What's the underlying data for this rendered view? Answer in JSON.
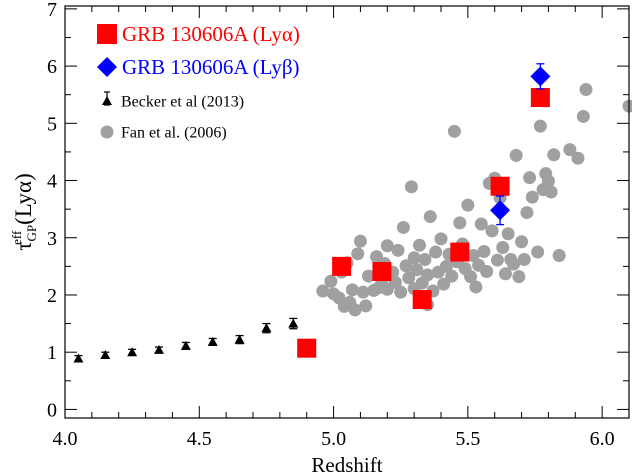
{
  "chart_data": {
    "type": "scatter",
    "xlabel": "Redshift",
    "ylabel": {
      "tau": "τ",
      "sub": "GP",
      "sup": "eff",
      "rest": " (Lyα)"
    },
    "xlim": [
      4.0,
      6.1
    ],
    "ylim": [
      -0.15,
      7.05
    ],
    "xticks": [
      4.0,
      4.5,
      5.0,
      5.5,
      6.0
    ],
    "xtick_labels": [
      "4.0",
      "4.5",
      "5.0",
      "5.5",
      "6.0"
    ],
    "yticks": [
      0,
      1,
      2,
      3,
      4,
      5,
      6,
      7
    ],
    "ytick_labels": [
      "0",
      "1",
      "2",
      "3",
      "4",
      "5",
      "6",
      "7"
    ],
    "grid": false,
    "legend_position": "top-left",
    "series": [
      {
        "name": "GRB 130606A (Lyα)",
        "marker": "square",
        "color": "#ff0000",
        "points": [
          [
            4.9,
            1.07
          ],
          [
            5.03,
            2.5
          ],
          [
            5.18,
            2.41
          ],
          [
            5.33,
            1.92
          ],
          [
            5.47,
            2.75
          ],
          [
            5.62,
            3.9
          ],
          [
            5.77,
            5.45
          ]
        ]
      },
      {
        "name": "GRB 130606A (Lyβ)",
        "marker": "diamond",
        "color": "#0000ff",
        "points": [
          [
            5.62,
            3.48,
            0.25
          ],
          [
            5.77,
            5.82,
            0.22
          ]
        ]
      },
      {
        "name": "Becker et al (2013)",
        "marker": "triangle",
        "color": "#000000",
        "points": [
          [
            4.05,
            0.89,
            0.05
          ],
          [
            4.15,
            0.95,
            0.05
          ],
          [
            4.25,
            1.0,
            0.05
          ],
          [
            4.35,
            1.04,
            0.05
          ],
          [
            4.45,
            1.11,
            0.06
          ],
          [
            4.55,
            1.18,
            0.06
          ],
          [
            4.65,
            1.22,
            0.07
          ],
          [
            4.75,
            1.42,
            0.08
          ],
          [
            4.85,
            1.5,
            0.09
          ]
        ]
      },
      {
        "name": "Fan et al. (2006)",
        "marker": "circle",
        "color": "#a0a0a0",
        "points": [
          [
            4.96,
            2.07
          ],
          [
            4.99,
            2.24
          ],
          [
            5.0,
            2.02
          ],
          [
            5.02,
            1.95
          ],
          [
            5.03,
            2.4
          ],
          [
            5.04,
            1.8
          ],
          [
            5.05,
            2.56
          ],
          [
            5.06,
            1.87
          ],
          [
            5.07,
            2.09
          ],
          [
            5.08,
            1.74
          ],
          [
            5.09,
            2.72
          ],
          [
            5.1,
            2.94
          ],
          [
            5.11,
            2.05
          ],
          [
            5.12,
            1.81
          ],
          [
            5.13,
            2.33
          ],
          [
            5.15,
            2.08
          ],
          [
            5.16,
            2.67
          ],
          [
            5.17,
            2.13
          ],
          [
            5.18,
            2.26
          ],
          [
            5.19,
            2.55
          ],
          [
            5.2,
            2.86
          ],
          [
            5.2,
            2.1
          ],
          [
            5.22,
            2.4
          ],
          [
            5.23,
            2.22
          ],
          [
            5.24,
            2.78
          ],
          [
            5.25,
            2.05
          ],
          [
            5.26,
            3.18
          ],
          [
            5.27,
            2.51
          ],
          [
            5.28,
            2.3
          ],
          [
            5.29,
            3.89
          ],
          [
            5.3,
            2.65
          ],
          [
            5.3,
            2.11
          ],
          [
            5.31,
            2.44
          ],
          [
            5.32,
            2.87
          ],
          [
            5.33,
            2.21
          ],
          [
            5.34,
            2.62
          ],
          [
            5.35,
            1.83
          ],
          [
            5.35,
            2.35
          ],
          [
            5.36,
            3.37
          ],
          [
            5.37,
            2.07
          ],
          [
            5.38,
            2.75
          ],
          [
            5.39,
            2.4
          ],
          [
            5.4,
            2.98
          ],
          [
            5.41,
            2.19
          ],
          [
            5.42,
            2.5
          ],
          [
            5.43,
            2.71
          ],
          [
            5.44,
            2.33
          ],
          [
            5.45,
            4.86
          ],
          [
            5.46,
            2.58
          ],
          [
            5.47,
            3.26
          ],
          [
            5.48,
            2.89
          ],
          [
            5.49,
            2.46
          ],
          [
            5.5,
            3.57
          ],
          [
            5.51,
            2.32
          ],
          [
            5.52,
            2.69
          ],
          [
            5.53,
            2.14
          ],
          [
            5.54,
            2.52
          ],
          [
            5.55,
            3.24
          ],
          [
            5.56,
            2.76
          ],
          [
            5.57,
            2.41
          ],
          [
            5.58,
            3.95
          ],
          [
            5.59,
            3.12
          ],
          [
            5.6,
            4.04
          ],
          [
            5.61,
            2.61
          ],
          [
            5.62,
            3.7
          ],
          [
            5.63,
            2.83
          ],
          [
            5.64,
            2.37
          ],
          [
            5.65,
            3.07
          ],
          [
            5.66,
            2.62
          ],
          [
            5.67,
            2.54
          ],
          [
            5.68,
            4.44
          ],
          [
            5.69,
            2.32
          ],
          [
            5.7,
            2.93
          ],
          [
            5.71,
            2.62
          ],
          [
            5.72,
            3.44
          ],
          [
            5.73,
            4.05
          ],
          [
            5.74,
            3.71
          ],
          [
            5.76,
            2.75
          ],
          [
            5.77,
            4.95
          ],
          [
            5.78,
            3.84
          ],
          [
            5.79,
            4.12
          ],
          [
            5.8,
            3.99
          ],
          [
            5.81,
            3.8
          ],
          [
            5.82,
            4.45
          ],
          [
            5.84,
            2.69
          ],
          [
            5.88,
            4.54
          ],
          [
            5.91,
            4.39
          ],
          [
            5.93,
            5.12
          ],
          [
            5.94,
            5.59
          ],
          [
            6.1,
            5.3
          ]
        ]
      }
    ]
  }
}
